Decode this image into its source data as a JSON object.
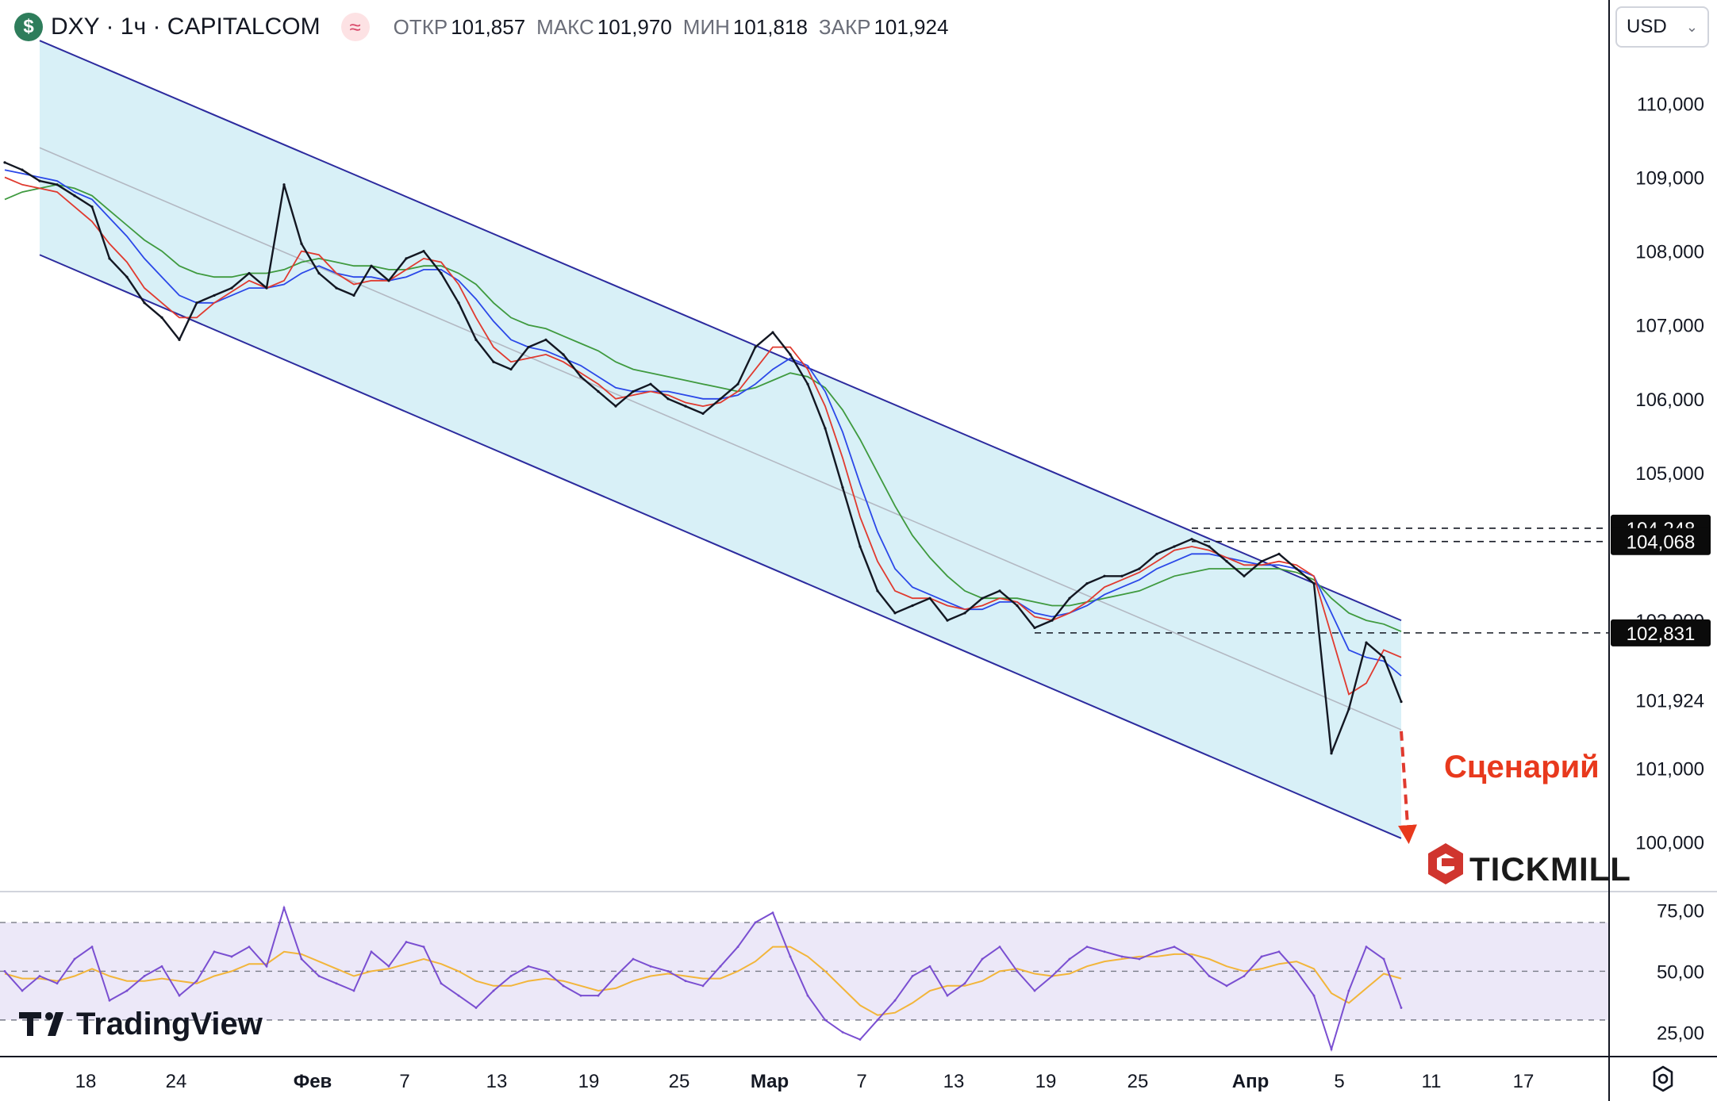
{
  "header": {
    "symbol_icon": "dollar-icon",
    "symbol": "DXY · 1ч · CAPITALCOM",
    "indicator_icon": "approx-icon",
    "ohlc": [
      {
        "label": "ОТКР",
        "value": "101,857"
      },
      {
        "label": "МАКС",
        "value": "101,970"
      },
      {
        "label": "МИН",
        "value": "101,818"
      },
      {
        "label": "ЗАКР",
        "value": "101,924"
      }
    ]
  },
  "currency_select": {
    "value": "USD"
  },
  "settings_icon": "gear-icon",
  "annotation": {
    "text": "Сценарий",
    "color": "#e8391d"
  },
  "brand": {
    "tickmill": "TICKMILL",
    "tradingview": "TradingView"
  },
  "colors": {
    "channel_fill": "#d8f0f7",
    "channel_line": "#2c2b9e",
    "ma_red": "#e03a2f",
    "ma_blue": "#2b48e8",
    "ma_green": "#3f9a3f",
    "rsi_line": "#7a4fd1",
    "rsi_signal": "#f2b53a",
    "rsi_band": "#ece8f8"
  },
  "chart_data": [
    {
      "type": "line",
      "title": "DXY · 1ч · CAPITALCOM",
      "y_axis": {
        "ylim": [
          99350,
          111400
        ],
        "ticks": [
          "110,000",
          "109,000",
          "108,000",
          "107,000",
          "106,000",
          "105,000",
          "103,000",
          "101,000",
          "100,000"
        ]
      },
      "x_axis": {
        "ticks": [
          "18",
          "24",
          "Фев",
          "7",
          "13",
          "19",
          "25",
          "Мар",
          "7",
          "13",
          "19",
          "25",
          "Апр",
          "5",
          "11",
          "17"
        ]
      },
      "price_labels": [
        {
          "value": 104248,
          "text": "104,248",
          "style": "box"
        },
        {
          "value": 104068,
          "text": "104,068",
          "style": "box"
        },
        {
          "value": 102831,
          "text": "102,831",
          "style": "box"
        },
        {
          "value": 101924,
          "text": "101,924",
          "style": "plain"
        }
      ],
      "levels": [
        {
          "value": 104248,
          "from_index": 68
        },
        {
          "value": 104068,
          "from_index": 68
        },
        {
          "value": 102831,
          "from_index": 59
        }
      ],
      "channel": {
        "upper": [
          [
            2,
            110850
          ],
          [
            80,
            103000
          ]
        ],
        "lower": [
          [
            2,
            107950
          ],
          [
            80,
            100050
          ]
        ],
        "mid": [
          [
            2,
            109400
          ],
          [
            80,
            101520
          ]
        ]
      },
      "close_series": [
        109200,
        109100,
        108950,
        108900,
        108750,
        108600,
        107900,
        107650,
        107300,
        107100,
        106800,
        107300,
        107400,
        107500,
        107700,
        107500,
        108900,
        108100,
        107700,
        107500,
        107400,
        107800,
        107600,
        107900,
        108000,
        107700,
        107300,
        106800,
        106500,
        106400,
        106700,
        106800,
        106600,
        106300,
        106100,
        105900,
        106100,
        106200,
        106000,
        105900,
        105800,
        106000,
        106200,
        106700,
        106900,
        106600,
        106200,
        105600,
        104800,
        104000,
        103400,
        103100,
        103200,
        103300,
        103000,
        103100,
        103300,
        103400,
        103200,
        102900,
        103000,
        103300,
        103500,
        103600,
        103600,
        103700,
        103900,
        104000,
        104100,
        104000,
        103800,
        103600,
        103800,
        103900,
        103700,
        103500,
        101200,
        101800,
        102700,
        102500,
        101900
      ],
      "ma_red": [
        109000,
        108900,
        108850,
        108800,
        108600,
        108400,
        108100,
        107850,
        107500,
        107300,
        107100,
        107100,
        107300,
        107450,
        107600,
        107500,
        107600,
        108000,
        107950,
        107700,
        107550,
        107600,
        107600,
        107750,
        107900,
        107850,
        107550,
        107100,
        106700,
        106500,
        106550,
        106600,
        106500,
        106350,
        106200,
        106000,
        106050,
        106100,
        106050,
        105950,
        105900,
        105950,
        106100,
        106400,
        106700,
        106700,
        106400,
        105900,
        105200,
        104400,
        103800,
        103400,
        103300,
        103300,
        103200,
        103150,
        103200,
        103300,
        103250,
        103050,
        103000,
        103100,
        103250,
        103450,
        103550,
        103650,
        103800,
        103950,
        104000,
        103950,
        103850,
        103750,
        103750,
        103800,
        103750,
        103600,
        102800,
        102000,
        102150,
        102600,
        102500
      ],
      "ma_blue": [
        109100,
        109050,
        109000,
        108950,
        108800,
        108700,
        108450,
        108200,
        107900,
        107650,
        107400,
        107300,
        107300,
        107400,
        107500,
        107500,
        107550,
        107700,
        107800,
        107700,
        107650,
        107650,
        107600,
        107650,
        107750,
        107750,
        107600,
        107350,
        107050,
        106800,
        106700,
        106650,
        106550,
        106450,
        106300,
        106150,
        106100,
        106100,
        106100,
        106050,
        106000,
        106000,
        106050,
        106200,
        106400,
        106550,
        106450,
        106100,
        105550,
        104850,
        104200,
        103700,
        103450,
        103350,
        103250,
        103150,
        103150,
        103250,
        103250,
        103100,
        103050,
        103100,
        103200,
        103350,
        103450,
        103550,
        103700,
        103800,
        103900,
        103900,
        103850,
        103800,
        103750,
        103750,
        103700,
        103600,
        103100,
        102600,
        102500,
        102450,
        102250
      ],
      "ma_green": [
        108700,
        108800,
        108850,
        108900,
        108850,
        108750,
        108550,
        108350,
        108150,
        108000,
        107800,
        107700,
        107650,
        107650,
        107700,
        107700,
        107750,
        107850,
        107900,
        107850,
        107800,
        107800,
        107750,
        107750,
        107800,
        107800,
        107700,
        107550,
        107300,
        107100,
        107000,
        106950,
        106850,
        106750,
        106650,
        106500,
        106400,
        106350,
        106300,
        106250,
        106200,
        106150,
        106100,
        106150,
        106250,
        106350,
        106300,
        106150,
        105850,
        105450,
        105000,
        104550,
        104150,
        103850,
        103600,
        103400,
        103300,
        103300,
        103300,
        103250,
        103200,
        103200,
        103250,
        103300,
        103350,
        103400,
        103500,
        103600,
        103650,
        103700,
        103700,
        103700,
        103700,
        103700,
        103650,
        103550,
        103300,
        103100,
        103000,
        102950,
        102850
      ],
      "scenario_arrow": {
        "from": [
          80,
          101500
        ],
        "to": [
          80.4,
          100100
        ]
      }
    },
    {
      "type": "line",
      "title": "RSI",
      "ylim": [
        15,
        82
      ],
      "y_ticks": [
        "75,00",
        "50,00",
        "25,00"
      ],
      "bands": [
        70,
        50,
        30
      ],
      "rsi_series": [
        50,
        42,
        48,
        45,
        55,
        60,
        38,
        42,
        48,
        52,
        40,
        46,
        58,
        56,
        60,
        52,
        76,
        55,
        48,
        45,
        42,
        58,
        52,
        62,
        60,
        45,
        40,
        35,
        42,
        48,
        52,
        50,
        44,
        40,
        40,
        48,
        55,
        52,
        50,
        46,
        44,
        52,
        60,
        70,
        74,
        56,
        40,
        30,
        25,
        22,
        30,
        38,
        48,
        52,
        40,
        45,
        55,
        60,
        50,
        42,
        48,
        55,
        60,
        58,
        56,
        55,
        58,
        60,
        56,
        48,
        44,
        48,
        56,
        58,
        50,
        40,
        18,
        42,
        60,
        55,
        35
      ],
      "signal_series": [
        49,
        47,
        47,
        46,
        48,
        51,
        48,
        46,
        46,
        47,
        46,
        45,
        48,
        50,
        53,
        53,
        58,
        57,
        54,
        51,
        48,
        50,
        51,
        53,
        55,
        53,
        50,
        46,
        44,
        44,
        46,
        47,
        46,
        44,
        42,
        43,
        46,
        48,
        49,
        48,
        47,
        47,
        50,
        54,
        60,
        60,
        56,
        50,
        43,
        36,
        32,
        33,
        37,
        42,
        44,
        44,
        46,
        50,
        51,
        49,
        48,
        49,
        52,
        54,
        55,
        56,
        56,
        57,
        57,
        55,
        52,
        50,
        51,
        53,
        54,
        51,
        41,
        37,
        43,
        49,
        47
      ]
    }
  ]
}
